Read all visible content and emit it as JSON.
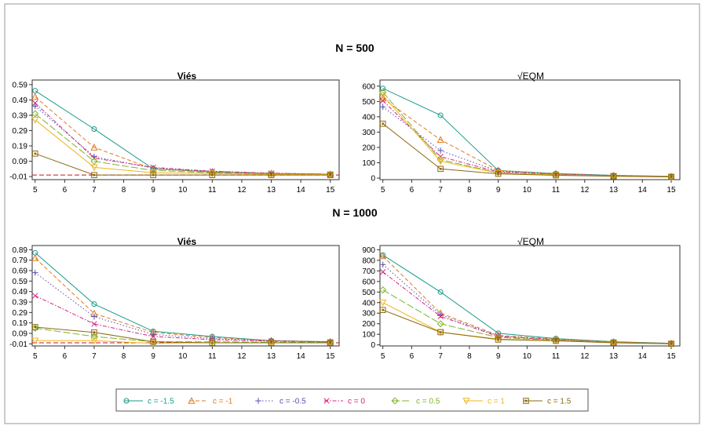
{
  "sections": [
    {
      "title": "N = 500"
    },
    {
      "title": "N = 1000"
    }
  ],
  "legend": {
    "items": [
      {
        "label": "c = -1.5",
        "color": "#1a9a8a",
        "marker": "circle",
        "dash": "solid"
      },
      {
        "label": "c = -1",
        "color": "#e07a1f",
        "marker": "triangle-up",
        "dash": "dashed"
      },
      {
        "label": "c = -0.5",
        "color": "#5a4fb0",
        "marker": "plus",
        "dash": "dotted"
      },
      {
        "label": "c = 0",
        "color": "#d6247a",
        "marker": "cross",
        "dash": "dashdot"
      },
      {
        "label": "c = 0.5",
        "color": "#7cb32a",
        "marker": "diamond",
        "dash": "longdash"
      },
      {
        "label": "c = 1",
        "color": "#f0b41c",
        "marker": "triangle-down",
        "dash": "solid"
      },
      {
        "label": "c = 1.5",
        "color": "#8a6a10",
        "marker": "square",
        "dash": "solid"
      }
    ]
  },
  "chart_data": [
    {
      "type": "line",
      "section": "N = 500",
      "title": "Viés",
      "x": [
        5,
        7,
        9,
        11,
        13,
        15
      ],
      "xticks": [
        5,
        6,
        7,
        8,
        9,
        10,
        11,
        12,
        13,
        14,
        15
      ],
      "xlim": [
        4.9,
        15.3
      ],
      "yticks": [
        -0.01,
        0.09,
        0.19,
        0.29,
        0.39,
        0.49,
        0.59
      ],
      "ytick_labels": [
        "-0.01",
        "0.09",
        "0.19",
        "0.29",
        "0.39",
        "0.49",
        "0.59"
      ],
      "ylim": [
        -0.03,
        0.62
      ],
      "reference_line": 0,
      "series": [
        {
          "name": "c = -1.5",
          "values": [
            0.55,
            0.3,
            0.04,
            0.02,
            0.01,
            0.005
          ]
        },
        {
          "name": "c = -1",
          "values": [
            0.51,
            0.18,
            0.04,
            0.02,
            0.01,
            0.005
          ]
        },
        {
          "name": "c = -0.5",
          "values": [
            0.45,
            0.12,
            0.045,
            0.025,
            0.012,
            0.006
          ]
        },
        {
          "name": "c = 0",
          "values": [
            0.47,
            0.11,
            0.05,
            0.025,
            0.012,
            0.006
          ]
        },
        {
          "name": "c = 0.5",
          "values": [
            0.4,
            0.09,
            0.03,
            0.015,
            0.008,
            0.004
          ]
        },
        {
          "name": "c = 1",
          "values": [
            0.36,
            0.05,
            0.015,
            0.01,
            0.005,
            0.003
          ]
        },
        {
          "name": "c = 1.5",
          "values": [
            0.14,
            0.0,
            0.0,
            0.0,
            0.0,
            0.0
          ]
        }
      ]
    },
    {
      "type": "line",
      "section": "N = 500",
      "title": "√EQM",
      "x": [
        5,
        7,
        9,
        11,
        13,
        15
      ],
      "xticks": [
        5,
        6,
        7,
        8,
        9,
        10,
        11,
        12,
        13,
        14,
        15
      ],
      "xlim": [
        4.9,
        15.3
      ],
      "yticks": [
        0,
        100,
        200,
        300,
        400,
        500,
        600
      ],
      "ytick_labels": [
        "0",
        "100",
        "200",
        "300",
        "400",
        "500",
        "600"
      ],
      "ylim": [
        -10,
        640
      ],
      "series": [
        {
          "name": "c = -1.5",
          "values": [
            585,
            410,
            50,
            30,
            18,
            12
          ]
        },
        {
          "name": "c = -1",
          "values": [
            520,
            250,
            50,
            28,
            17,
            11
          ]
        },
        {
          "name": "c = -0.5",
          "values": [
            465,
            180,
            45,
            27,
            16,
            10
          ]
        },
        {
          "name": "c = 0",
          "values": [
            505,
            140,
            40,
            25,
            15,
            10
          ]
        },
        {
          "name": "c = 0.5",
          "values": [
            560,
            120,
            35,
            22,
            14,
            9
          ]
        },
        {
          "name": "c = 1",
          "values": [
            540,
            110,
            33,
            21,
            13,
            9
          ]
        },
        {
          "name": "c = 1.5",
          "values": [
            355,
            60,
            28,
            18,
            12,
            8
          ]
        }
      ]
    },
    {
      "type": "line",
      "section": "N = 1000",
      "title": "Viés",
      "x": [
        5,
        7,
        9,
        11,
        13,
        15
      ],
      "xticks": [
        5,
        6,
        7,
        8,
        9,
        10,
        11,
        12,
        13,
        14,
        15
      ],
      "xlim": [
        4.9,
        15.3
      ],
      "yticks": [
        -0.01,
        0.09,
        0.19,
        0.29,
        0.39,
        0.49,
        0.59,
        0.69,
        0.79,
        0.89
      ],
      "ytick_labels": [
        "-0.01",
        "0.09",
        "0.19",
        "0.29",
        "0.39",
        "0.49",
        "0.59",
        "0.69",
        "0.79",
        "0.89"
      ],
      "ylim": [
        -0.03,
        0.93
      ],
      "reference_line": 0,
      "series": [
        {
          "name": "c = -1.5",
          "values": [
            0.86,
            0.37,
            0.11,
            0.06,
            0.02,
            0.01
          ]
        },
        {
          "name": "c = -1",
          "values": [
            0.81,
            0.28,
            0.1,
            0.05,
            0.02,
            0.01
          ]
        },
        {
          "name": "c = -0.5",
          "values": [
            0.67,
            0.25,
            0.08,
            0.04,
            0.02,
            0.01
          ]
        },
        {
          "name": "c = 0",
          "values": [
            0.45,
            0.18,
            0.06,
            0.03,
            0.015,
            0.008
          ]
        },
        {
          "name": "c = 0.5",
          "values": [
            0.14,
            0.06,
            0.01,
            0.01,
            0.005,
            0.003
          ]
        },
        {
          "name": "c = 1",
          "values": [
            0.02,
            0.02,
            -0.005,
            0.0,
            0.0,
            0.0
          ]
        },
        {
          "name": "c = 1.5",
          "values": [
            0.15,
            0.1,
            0.01,
            0.0,
            0.0,
            0.0
          ]
        }
      ]
    },
    {
      "type": "line",
      "section": "N = 1000",
      "title": "√EQM",
      "x": [
        5,
        7,
        9,
        11,
        13,
        15
      ],
      "xticks": [
        5,
        6,
        7,
        8,
        9,
        10,
        11,
        12,
        13,
        14,
        15
      ],
      "xlim": [
        4.9,
        15.3
      ],
      "yticks": [
        0,
        100,
        200,
        300,
        400,
        500,
        600,
        700,
        800,
        900
      ],
      "ytick_labels": [
        "0",
        "100",
        "200",
        "300",
        "400",
        "500",
        "600",
        "700",
        "800",
        "900"
      ],
      "ylim": [
        -10,
        940
      ],
      "series": [
        {
          "name": "c = -1.5",
          "values": [
            850,
            500,
            110,
            60,
            30,
            15
          ]
        },
        {
          "name": "c = -1",
          "values": [
            840,
            300,
            90,
            55,
            28,
            14
          ]
        },
        {
          "name": "c = -0.5",
          "values": [
            760,
            285,
            85,
            50,
            26,
            13
          ]
        },
        {
          "name": "c = 0",
          "values": [
            690,
            270,
            80,
            48,
            25,
            12
          ]
        },
        {
          "name": "c = 0.5",
          "values": [
            520,
            200,
            70,
            45,
            24,
            12
          ]
        },
        {
          "name": "c = 1",
          "values": [
            400,
            120,
            55,
            40,
            22,
            11
          ]
        },
        {
          "name": "c = 1.5",
          "values": [
            330,
            120,
            50,
            38,
            20,
            10
          ]
        }
      ]
    }
  ]
}
